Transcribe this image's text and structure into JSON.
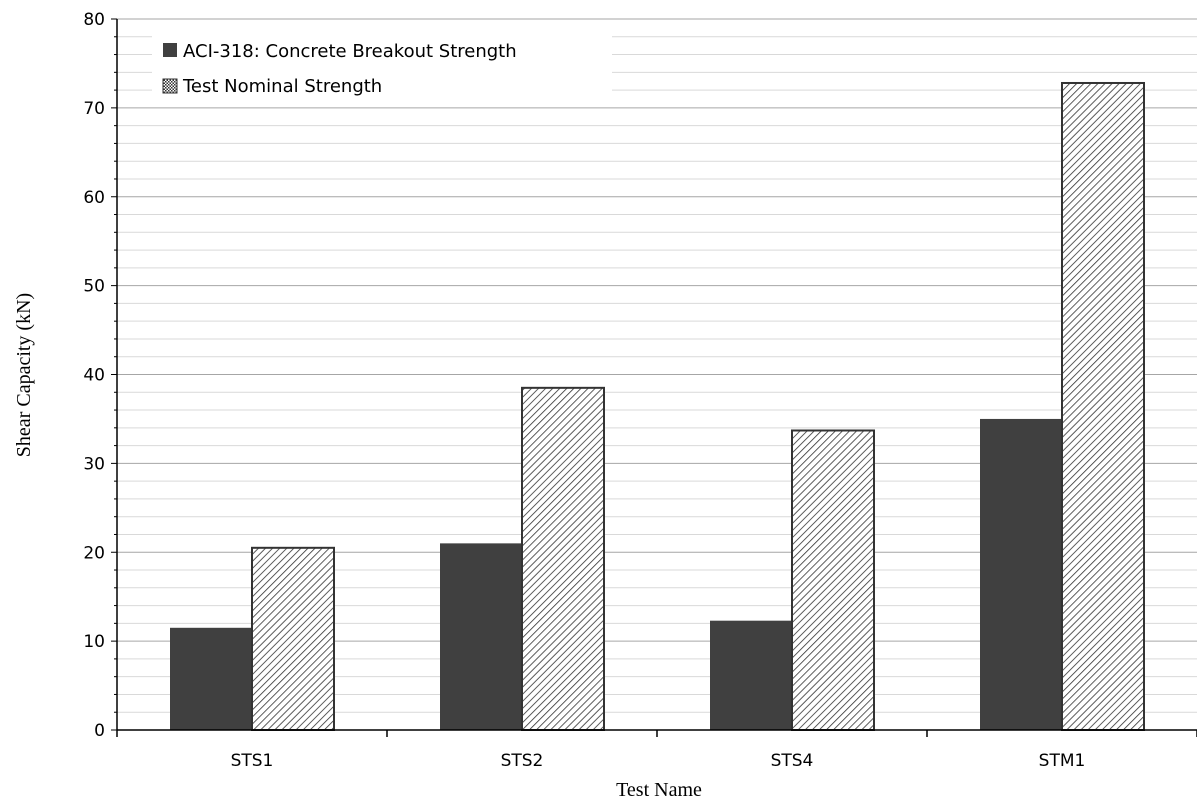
{
  "chart_data": {
    "type": "bar",
    "categories": [
      "STS1",
      "STS2",
      "STS4",
      "STM1"
    ],
    "series": [
      {
        "name": "ACI-318: Concrete Breakout Strength",
        "values": [
          11.5,
          21.0,
          12.3,
          35.0
        ],
        "fill": "solid",
        "color": "#404040"
      },
      {
        "name": "Test Nominal Strength",
        "values": [
          20.5,
          38.5,
          33.7,
          72.8
        ],
        "fill": "hatched",
        "color": "#404040"
      }
    ],
    "xlabel": "Test Name",
    "ylabel": "Shear Capacity (kN)",
    "ylim": [
      0,
      80
    ],
    "major_ticks": [
      0,
      10,
      20,
      30,
      40,
      50,
      60,
      70,
      80
    ],
    "minor_grid_step": 2,
    "grid": true,
    "legend_position": "top-left"
  }
}
